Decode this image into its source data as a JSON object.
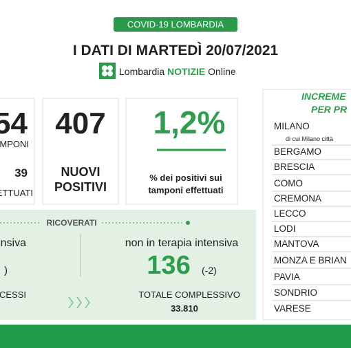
{
  "header": {
    "banner": "COVID-19 LOMBARDIA",
    "title": "I DATI DI MARTEDÌ 20/07/2021",
    "logo": {
      "brand": "Lombardia",
      "name": "NOTIZIE",
      "suffix": "Online"
    }
  },
  "cards": [
    {
      "value": "54",
      "label": "MPONI",
      "sub_value": "39",
      "sub_label": "ETTUATI"
    },
    {
      "value": "407",
      "label_lines": [
        "NUOVI",
        "POSITIVI"
      ]
    },
    {
      "value": "1,2%",
      "label_lines": [
        "% dei positivi sui",
        "tamponi effettuati"
      ]
    }
  ],
  "ricoverati": {
    "title": "RICOVERATI",
    "left_label": "nsiva",
    "left_value": ")",
    "right_label": "non in terapia intensiva",
    "right_value": "136",
    "right_delta": "(-2)"
  },
  "deaths": {
    "label": "CESSI",
    "total_label": "TOTALE COMPLESSIVO",
    "total_value": "33.810"
  },
  "provinces": {
    "title_lines": [
      "INCREME",
      "PER PR"
    ],
    "names": [
      "MILANO",
      "BERGAMO",
      "BRESCIA",
      "COMO",
      "CREMONA",
      "LECCO",
      "LODI",
      "MANTOVA",
      "MONZA E BRIAN",
      "PAVIA",
      "SONDRIO",
      "VARESE"
    ],
    "milano_note": "di cui Milano città"
  }
}
